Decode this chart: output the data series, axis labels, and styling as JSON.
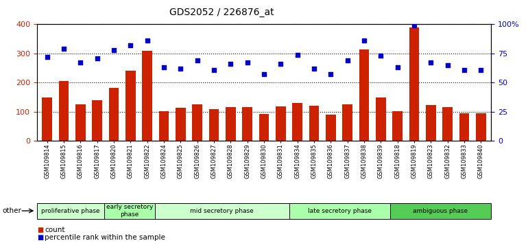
{
  "title": "GDS2052 / 226876_at",
  "samples": [
    "GSM109814",
    "GSM109815",
    "GSM109816",
    "GSM109817",
    "GSM109820",
    "GSM109821",
    "GSM109822",
    "GSM109824",
    "GSM109825",
    "GSM109826",
    "GSM109827",
    "GSM109828",
    "GSM109829",
    "GSM109830",
    "GSM109831",
    "GSM109834",
    "GSM109835",
    "GSM109836",
    "GSM109837",
    "GSM109838",
    "GSM109839",
    "GSM109818",
    "GSM109819",
    "GSM109823",
    "GSM109832",
    "GSM109833",
    "GSM109840"
  ],
  "counts": [
    150,
    205,
    125,
    140,
    182,
    240,
    310,
    102,
    113,
    126,
    110,
    115,
    115,
    93,
    118,
    130,
    120,
    91,
    126,
    313,
    150,
    101,
    390,
    124,
    116,
    95,
    95
  ],
  "percentiles": [
    72,
    79,
    67,
    71,
    78,
    82,
    86,
    63,
    62,
    69,
    61,
    66,
    67,
    57,
    66,
    74,
    62,
    57,
    69,
    86,
    73,
    63,
    99,
    67,
    65,
    61,
    61
  ],
  "bar_color": "#cc2200",
  "dot_color": "#0000cc",
  "left_ylim": [
    0,
    400
  ],
  "right_ylim": [
    0,
    100
  ],
  "left_yticks": [
    0,
    100,
    200,
    300,
    400
  ],
  "right_yticks": [
    0,
    25,
    50,
    75,
    100
  ],
  "right_yticklabels": [
    "0",
    "25",
    "50",
    "75",
    "100%"
  ],
  "phases": [
    {
      "label": "proliferative phase",
      "start": 0,
      "end": 4,
      "color": "#ccffcc"
    },
    {
      "label": "early secretory\nphase",
      "start": 4,
      "end": 7,
      "color": "#aaffaa"
    },
    {
      "label": "mid secretory phase",
      "start": 7,
      "end": 15,
      "color": "#ccffcc"
    },
    {
      "label": "late secretory phase",
      "start": 15,
      "end": 21,
      "color": "#aaffaa"
    },
    {
      "label": "ambiguous phase",
      "start": 21,
      "end": 27,
      "color": "#55cc55"
    }
  ],
  "other_label": "other",
  "legend_count_label": "count",
  "legend_pct_label": "percentile rank within the sample",
  "bg_color": "#ffffff",
  "grid_color": "#000000",
  "tick_label_color_left": "#cc2200",
  "tick_label_color_right": "#0000cc"
}
